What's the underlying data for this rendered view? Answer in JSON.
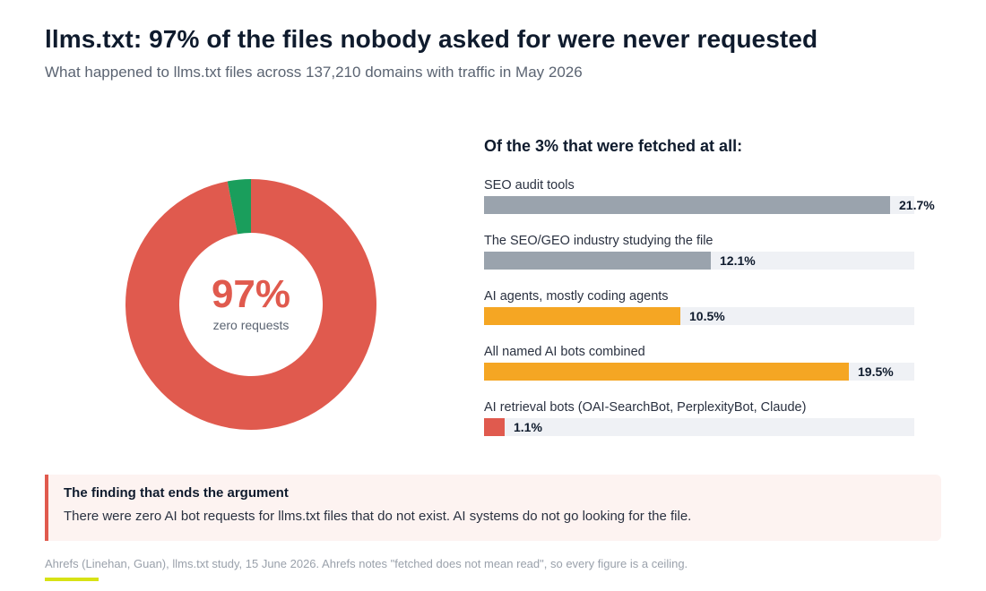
{
  "header": {
    "title": "llms.txt: 97% of the files nobody asked for were never requested",
    "subtitle": "What happened to llms.txt files across 137,210 domains with traffic in May 2026"
  },
  "donut": {
    "center_value": "97%",
    "center_label": "zero requests"
  },
  "bars_heading": "Of the 3% that were fetched at all:",
  "callout": {
    "title": "The finding that ends the argument",
    "body": "There were zero AI bot requests for llms.txt files that do not exist. AI systems do not go looking for the file."
  },
  "footer": {
    "source": "Ahrefs (Linehan, Guan), llms.txt study, 15 June 2026. Ahrefs notes \"fetched does not mean read\", so every figure is a ceiling."
  },
  "colors": {
    "red": "#e05a4e",
    "green": "#1a9e5c",
    "gray": "#9aa3ad",
    "orange": "#f5a623",
    "track": "#eff1f5"
  },
  "chart_data": [
    {
      "type": "pie",
      "variant": "donut",
      "slices": [
        {
          "label": "zero requests",
          "value": 97,
          "color": "#e05a4e"
        },
        {
          "label": "fetched",
          "value": 3,
          "color": "#1a9e5c"
        }
      ]
    },
    {
      "type": "bar",
      "orientation": "horizontal",
      "title": "Of the 3% that were fetched at all:",
      "xlim": [
        0,
        23
      ],
      "categories": [
        "SEO audit tools",
        "The SEO/GEO industry studying the file",
        "AI agents, mostly coding agents",
        "All named AI bots combined",
        "AI retrieval bots (OAI-SearchBot, PerplexityBot, Claude)"
      ],
      "values": [
        21.7,
        12.1,
        10.5,
        19.5,
        1.1
      ],
      "value_labels": [
        "21.7%",
        "12.1%",
        "10.5%",
        "19.5%",
        "1.1%"
      ],
      "colors": [
        "#9aa3ad",
        "#9aa3ad",
        "#f5a623",
        "#f5a623",
        "#e05a4e"
      ]
    }
  ]
}
